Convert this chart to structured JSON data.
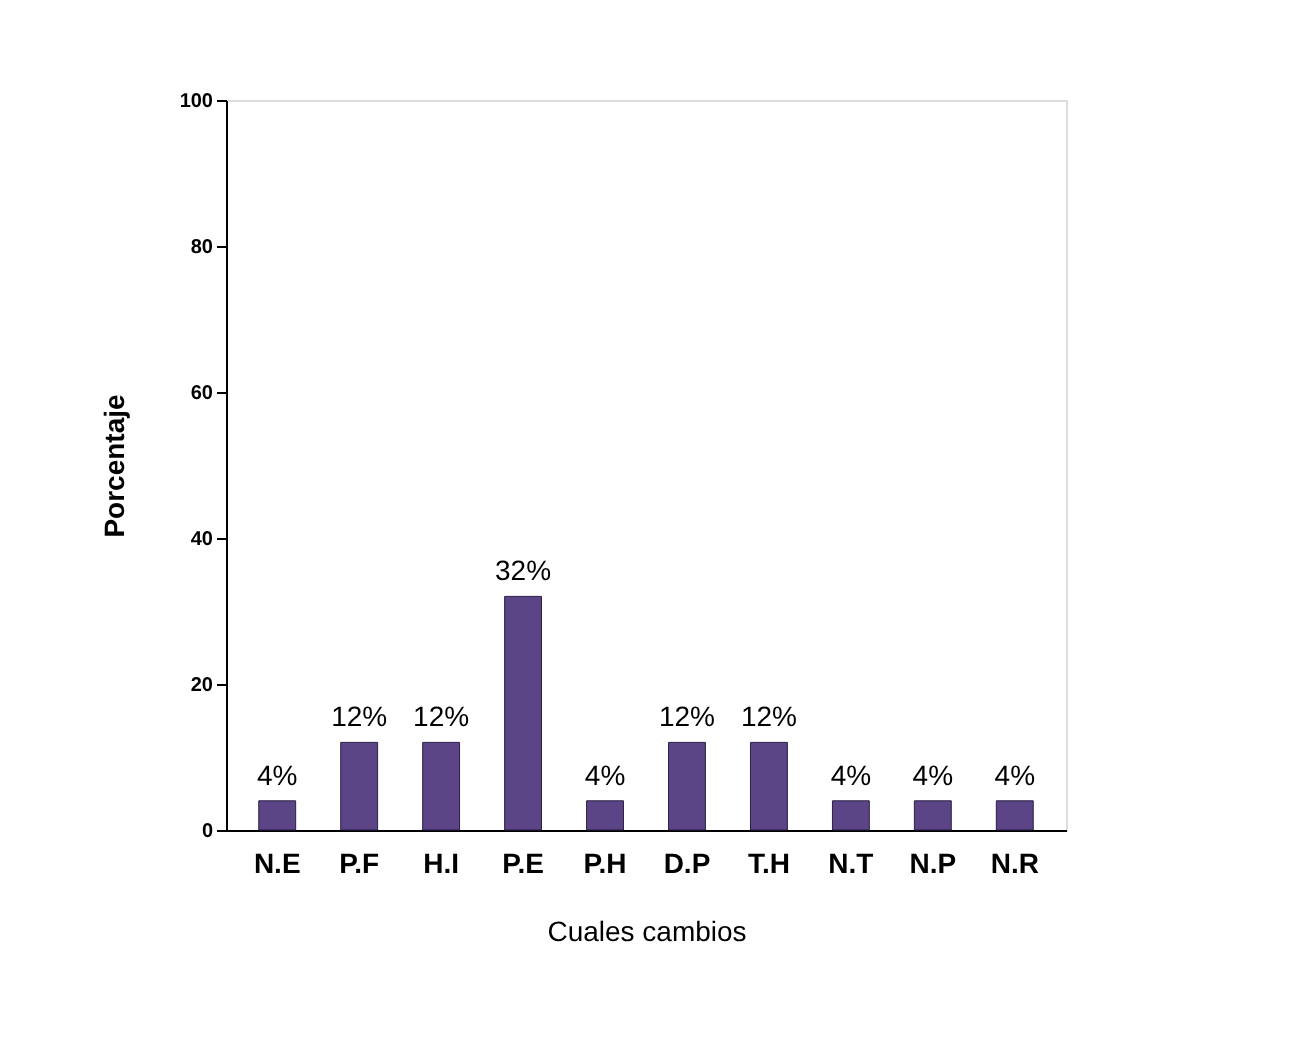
{
  "chart_data": {
    "type": "bar",
    "xlabel": "Cuales cambios",
    "ylabel": "Porcentaje",
    "categories": [
      "N.E",
      "P.F",
      "H.I",
      "P.E",
      "P.H",
      "D.P",
      "T.H",
      "N.T",
      "N.P",
      "N.R"
    ],
    "values": [
      4,
      12,
      12,
      32,
      4,
      12,
      12,
      4,
      4,
      4
    ],
    "value_labels": [
      "4%",
      "12%",
      "12%",
      "32%",
      "4%",
      "12%",
      "12%",
      "4%",
      "4%",
      "4%"
    ],
    "color": "#5b4587",
    "ylim": [
      0,
      100
    ],
    "yticks": [
      0,
      20,
      40,
      60,
      80,
      100
    ],
    "grid": false
  }
}
